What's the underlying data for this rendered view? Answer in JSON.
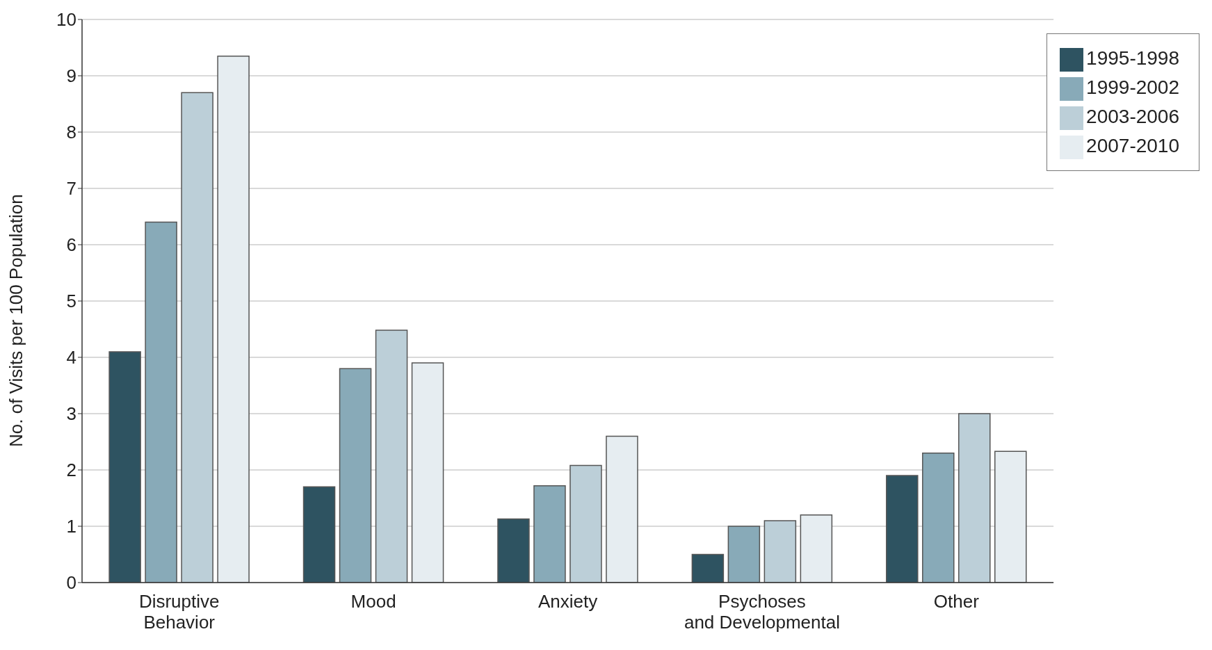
{
  "chart_data": {
    "type": "bar",
    "ylabel": "No. of Visits per 100 Population",
    "categories": [
      "Disruptive Behavior",
      "Mood",
      "Anxiety",
      "Psychoses and Developmental",
      "Other"
    ],
    "series": [
      {
        "name": "1995-1998",
        "color": "#2e5361",
        "values": [
          4.1,
          1.7,
          1.13,
          0.5,
          1.9
        ]
      },
      {
        "name": "1999-2002",
        "color": "#88aab8",
        "values": [
          6.4,
          3.8,
          1.72,
          1.0,
          2.3
        ]
      },
      {
        "name": "2003-2006",
        "color": "#bccfd8",
        "values": [
          8.7,
          4.48,
          2.08,
          1.1,
          3.0
        ]
      },
      {
        "name": "2007-2010",
        "color": "#e6edf1",
        "values": [
          9.35,
          3.9,
          2.6,
          1.2,
          2.33
        ]
      }
    ],
    "ylim": [
      0,
      10
    ],
    "yticks": [
      0,
      1,
      2,
      3,
      4,
      5,
      6,
      7,
      8,
      9,
      10
    ],
    "grid": "y",
    "legend": "top right"
  }
}
